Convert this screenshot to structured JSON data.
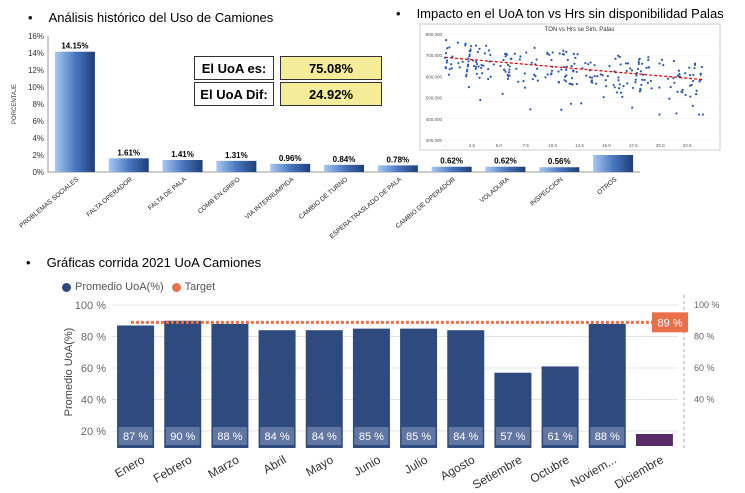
{
  "titles": {
    "t1": "Análisis histórico del Uso de Camiones",
    "t2": "Impacto en el UoA ton vs Hrs sin disponibilidad Palas",
    "t3": "Gráficas corrida 2021 UoA Camiones"
  },
  "kpis": {
    "uoa_label": "El UoA es:",
    "uoa_value": "75.08%",
    "dif_label": "El UoA Dif:",
    "dif_value": "24.92%"
  },
  "chart_data": [
    {
      "type": "bar",
      "ylabel": "PORCENTAJE",
      "ylim": [
        0,
        16
      ],
      "yticks": [
        "0%",
        "2%",
        "4%",
        "6%",
        "8%",
        "10%",
        "12%",
        "14%",
        "16%"
      ],
      "categories": [
        "PROBLEMAS SOCIALES",
        "FALTA OPERADOR",
        "FALTA DE PALA",
        "COMB EN GRIFO",
        "VIA INTERRUMPIDA",
        "CAMBIO DE TURNO",
        "ESPERA TRASLADO DE PALA",
        "CAMBIO DE OPERADOR",
        "VOLADURA",
        "INSPECCION",
        "OTROS"
      ],
      "values": [
        14.15,
        1.61,
        1.41,
        1.31,
        0.96,
        0.84,
        0.78,
        0.62,
        0.62,
        0.56,
        2.0
      ],
      "labels": [
        "14.15%",
        "1.61%",
        "1.41%",
        "1.31%",
        "0.96%",
        "0.84%",
        "0.78%",
        "0.62%",
        "0.62%",
        "0.56%",
        ""
      ],
      "color": "#4a78c0"
    },
    {
      "type": "scatter",
      "title": "TON vs Hrs se Sim. Palas",
      "xlim": [
        0,
        25
      ],
      "ylim": [
        300000,
        800000
      ],
      "xticks": [
        "-",
        "2.5",
        "5.0",
        "7.5",
        "10.0",
        "12.5",
        "15.0",
        "17.5",
        "20.0",
        "22.5"
      ],
      "yticks": [
        "300,000",
        "400,000",
        "500,000",
        "600,000",
        "700,000",
        "800,000"
      ],
      "trend": [
        [
          0,
          690000
        ],
        [
          24,
          585000
        ]
      ],
      "point_color": "#2e5aa8",
      "trend_color": "#cc0000"
    },
    {
      "type": "bar",
      "ylabel": "Promedio UoA(%)",
      "ylim": [
        15,
        100
      ],
      "yticks": [
        "20 %",
        "40 %",
        "60 %",
        "80 %",
        "100 %"
      ],
      "yticks_right": [
        "40 %",
        "60 %",
        "80 %",
        "100 %"
      ],
      "categories": [
        "Enero",
        "Febrero",
        "Marzo",
        "Abril",
        "Mayo",
        "Junio",
        "Julio",
        "Agosto",
        "Setiembre",
        "Octubre",
        "Noviem...",
        "Diciembre"
      ],
      "series": [
        {
          "name": "Promedio UoA(%)",
          "values": [
            87,
            90,
            88,
            84,
            84,
            85,
            85,
            84,
            57,
            61,
            88,
            23
          ],
          "labels": [
            "87 %",
            "90 %",
            "88 %",
            "84 %",
            "84 %",
            "85 %",
            "85 %",
            "84 %",
            "57 %",
            "61 %",
            "88 %",
            ""
          ],
          "color": "#2e4a7e"
        },
        {
          "name": "Target",
          "type": "line",
          "value": 89,
          "label": "89 %",
          "color": "#e8704a"
        }
      ],
      "december_color": "#5a2a6a"
    }
  ]
}
